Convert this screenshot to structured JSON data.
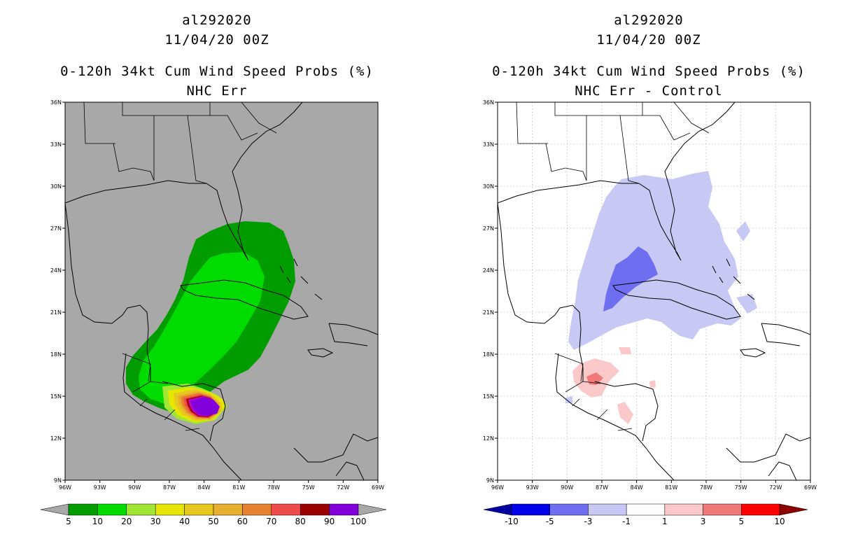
{
  "panels": [
    {
      "storm_id": "al292020",
      "init_time": "11/04/20 00Z",
      "product": "0-120h 34kt Cum Wind Speed Probs (%)",
      "subtitle": "NHC Err"
    },
    {
      "storm_id": "al292020",
      "init_time": "11/04/20 00Z",
      "product": "0-120h 34kt Cum Wind Speed Probs (%)",
      "subtitle": "NHC Err - Control"
    }
  ],
  "chart_data": [
    {
      "type": "heatmap",
      "title": "0-120h 34kt Cum Wind Speed Probs (%)",
      "subtitle": "NHC Err",
      "x_range": [
        -96,
        -69
      ],
      "y_range": [
        9,
        36
      ],
      "x_ticks": [
        "96W",
        "93W",
        "90W",
        "87W",
        "84W",
        "81W",
        "78W",
        "75W",
        "72W",
        "69W"
      ],
      "y_ticks": [
        "9N",
        "12N",
        "15N",
        "18N",
        "21N",
        "24N",
        "27N",
        "30N",
        "33N",
        "36N"
      ],
      "grid": false,
      "background_color": "#a8a8a8",
      "colorbar": {
        "labels": [
          "5",
          "10",
          "20",
          "30",
          "40",
          "50",
          "60",
          "70",
          "80",
          "90",
          "100"
        ],
        "colors": [
          "#009c00",
          "#00dc00",
          "#a0e632",
          "#e6e600",
          "#e6c81e",
          "#e6af2d",
          "#e6822d",
          "#f04b4b",
          "#9b0000",
          "#8200dc"
        ],
        "under_color": "#a8a8a8",
        "over_color": "#a8a8a8"
      }
    },
    {
      "type": "heatmap",
      "title": "0-120h 34kt Cum Wind Speed Probs (%)",
      "subtitle": "NHC Err - Control",
      "x_range": [
        -96,
        -69
      ],
      "y_range": [
        9,
        36
      ],
      "x_ticks": [
        "96W",
        "93W",
        "90W",
        "87W",
        "84W",
        "81W",
        "78W",
        "75W",
        "72W",
        "69W"
      ],
      "y_ticks": [
        "9N",
        "12N",
        "15N",
        "18N",
        "21N",
        "24N",
        "27N",
        "30N",
        "33N",
        "36N"
      ],
      "grid": true,
      "background_color": "#ffffff",
      "colorbar": {
        "labels": [
          "-10",
          "-5",
          "-3",
          "-1",
          "1",
          "3",
          "5",
          "10"
        ],
        "colors": [
          "#0000e6",
          "#6e6ef0",
          "#c8c8f5",
          "#ffffff",
          "#fac8c8",
          "#f07878",
          "#ff0000"
        ],
        "under_color": "#0000a0",
        "over_color": "#8c0000"
      }
    }
  ]
}
